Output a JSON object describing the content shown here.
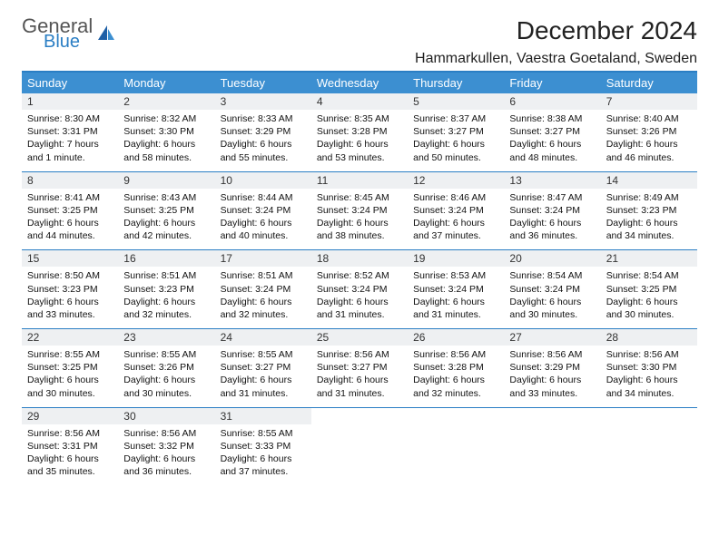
{
  "brand": {
    "general": "General",
    "blue": "Blue"
  },
  "title": "December 2024",
  "location": "Hammarkullen, Vaestra Goetaland, Sweden",
  "colors": {
    "header_bg": "#3c8fd1",
    "accent": "#2a7ec4",
    "daynum_bg": "#eef0f2",
    "text": "#111111"
  },
  "day_names": [
    "Sunday",
    "Monday",
    "Tuesday",
    "Wednesday",
    "Thursday",
    "Friday",
    "Saturday"
  ],
  "weeks": [
    [
      {
        "n": "1",
        "sr": "Sunrise: 8:30 AM",
        "ss": "Sunset: 3:31 PM",
        "dl": "Daylight: 7 hours and 1 minute."
      },
      {
        "n": "2",
        "sr": "Sunrise: 8:32 AM",
        "ss": "Sunset: 3:30 PM",
        "dl": "Daylight: 6 hours and 58 minutes."
      },
      {
        "n": "3",
        "sr": "Sunrise: 8:33 AM",
        "ss": "Sunset: 3:29 PM",
        "dl": "Daylight: 6 hours and 55 minutes."
      },
      {
        "n": "4",
        "sr": "Sunrise: 8:35 AM",
        "ss": "Sunset: 3:28 PM",
        "dl": "Daylight: 6 hours and 53 minutes."
      },
      {
        "n": "5",
        "sr": "Sunrise: 8:37 AM",
        "ss": "Sunset: 3:27 PM",
        "dl": "Daylight: 6 hours and 50 minutes."
      },
      {
        "n": "6",
        "sr": "Sunrise: 8:38 AM",
        "ss": "Sunset: 3:27 PM",
        "dl": "Daylight: 6 hours and 48 minutes."
      },
      {
        "n": "7",
        "sr": "Sunrise: 8:40 AM",
        "ss": "Sunset: 3:26 PM",
        "dl": "Daylight: 6 hours and 46 minutes."
      }
    ],
    [
      {
        "n": "8",
        "sr": "Sunrise: 8:41 AM",
        "ss": "Sunset: 3:25 PM",
        "dl": "Daylight: 6 hours and 44 minutes."
      },
      {
        "n": "9",
        "sr": "Sunrise: 8:43 AM",
        "ss": "Sunset: 3:25 PM",
        "dl": "Daylight: 6 hours and 42 minutes."
      },
      {
        "n": "10",
        "sr": "Sunrise: 8:44 AM",
        "ss": "Sunset: 3:24 PM",
        "dl": "Daylight: 6 hours and 40 minutes."
      },
      {
        "n": "11",
        "sr": "Sunrise: 8:45 AM",
        "ss": "Sunset: 3:24 PM",
        "dl": "Daylight: 6 hours and 38 minutes."
      },
      {
        "n": "12",
        "sr": "Sunrise: 8:46 AM",
        "ss": "Sunset: 3:24 PM",
        "dl": "Daylight: 6 hours and 37 minutes."
      },
      {
        "n": "13",
        "sr": "Sunrise: 8:47 AM",
        "ss": "Sunset: 3:24 PM",
        "dl": "Daylight: 6 hours and 36 minutes."
      },
      {
        "n": "14",
        "sr": "Sunrise: 8:49 AM",
        "ss": "Sunset: 3:23 PM",
        "dl": "Daylight: 6 hours and 34 minutes."
      }
    ],
    [
      {
        "n": "15",
        "sr": "Sunrise: 8:50 AM",
        "ss": "Sunset: 3:23 PM",
        "dl": "Daylight: 6 hours and 33 minutes."
      },
      {
        "n": "16",
        "sr": "Sunrise: 8:51 AM",
        "ss": "Sunset: 3:23 PM",
        "dl": "Daylight: 6 hours and 32 minutes."
      },
      {
        "n": "17",
        "sr": "Sunrise: 8:51 AM",
        "ss": "Sunset: 3:24 PM",
        "dl": "Daylight: 6 hours and 32 minutes."
      },
      {
        "n": "18",
        "sr": "Sunrise: 8:52 AM",
        "ss": "Sunset: 3:24 PM",
        "dl": "Daylight: 6 hours and 31 minutes."
      },
      {
        "n": "19",
        "sr": "Sunrise: 8:53 AM",
        "ss": "Sunset: 3:24 PM",
        "dl": "Daylight: 6 hours and 31 minutes."
      },
      {
        "n": "20",
        "sr": "Sunrise: 8:54 AM",
        "ss": "Sunset: 3:24 PM",
        "dl": "Daylight: 6 hours and 30 minutes."
      },
      {
        "n": "21",
        "sr": "Sunrise: 8:54 AM",
        "ss": "Sunset: 3:25 PM",
        "dl": "Daylight: 6 hours and 30 minutes."
      }
    ],
    [
      {
        "n": "22",
        "sr": "Sunrise: 8:55 AM",
        "ss": "Sunset: 3:25 PM",
        "dl": "Daylight: 6 hours and 30 minutes."
      },
      {
        "n": "23",
        "sr": "Sunrise: 8:55 AM",
        "ss": "Sunset: 3:26 PM",
        "dl": "Daylight: 6 hours and 30 minutes."
      },
      {
        "n": "24",
        "sr": "Sunrise: 8:55 AM",
        "ss": "Sunset: 3:27 PM",
        "dl": "Daylight: 6 hours and 31 minutes."
      },
      {
        "n": "25",
        "sr": "Sunrise: 8:56 AM",
        "ss": "Sunset: 3:27 PM",
        "dl": "Daylight: 6 hours and 31 minutes."
      },
      {
        "n": "26",
        "sr": "Sunrise: 8:56 AM",
        "ss": "Sunset: 3:28 PM",
        "dl": "Daylight: 6 hours and 32 minutes."
      },
      {
        "n": "27",
        "sr": "Sunrise: 8:56 AM",
        "ss": "Sunset: 3:29 PM",
        "dl": "Daylight: 6 hours and 33 minutes."
      },
      {
        "n": "28",
        "sr": "Sunrise: 8:56 AM",
        "ss": "Sunset: 3:30 PM",
        "dl": "Daylight: 6 hours and 34 minutes."
      }
    ],
    [
      {
        "n": "29",
        "sr": "Sunrise: 8:56 AM",
        "ss": "Sunset: 3:31 PM",
        "dl": "Daylight: 6 hours and 35 minutes."
      },
      {
        "n": "30",
        "sr": "Sunrise: 8:56 AM",
        "ss": "Sunset: 3:32 PM",
        "dl": "Daylight: 6 hours and 36 minutes."
      },
      {
        "n": "31",
        "sr": "Sunrise: 8:55 AM",
        "ss": "Sunset: 3:33 PM",
        "dl": "Daylight: 6 hours and 37 minutes."
      },
      null,
      null,
      null,
      null
    ]
  ]
}
